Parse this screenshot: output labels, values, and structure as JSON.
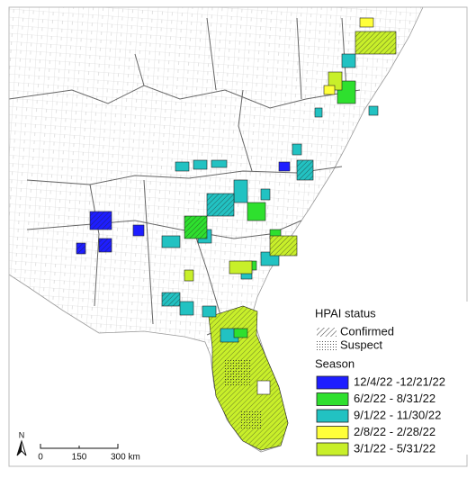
{
  "map": {
    "legend": {
      "title": "HPAI status",
      "status": [
        {
          "label": "Confirmed",
          "pattern": "hatch"
        },
        {
          "label": "Suspect",
          "pattern": "dots"
        }
      ],
      "season_title": "Season",
      "seasons": [
        {
          "label": "12/4/22 -12/21/22",
          "color": "#1e1eff"
        },
        {
          "label": "6/2/22 - 8/31/22",
          "color": "#2ee02e"
        },
        {
          "label": "9/1/22 - 11/30/22",
          "color": "#22c2c2"
        },
        {
          "label": "2/8/22 - 2/28/22",
          "color": "#ffff3a"
        },
        {
          "label": "3/1/22 - 5/31/22",
          "color": "#c8ef2a"
        }
      ]
    },
    "scale_bar": {
      "labels": [
        "0",
        "150",
        "300 km"
      ]
    },
    "north_arrow": "N"
  }
}
